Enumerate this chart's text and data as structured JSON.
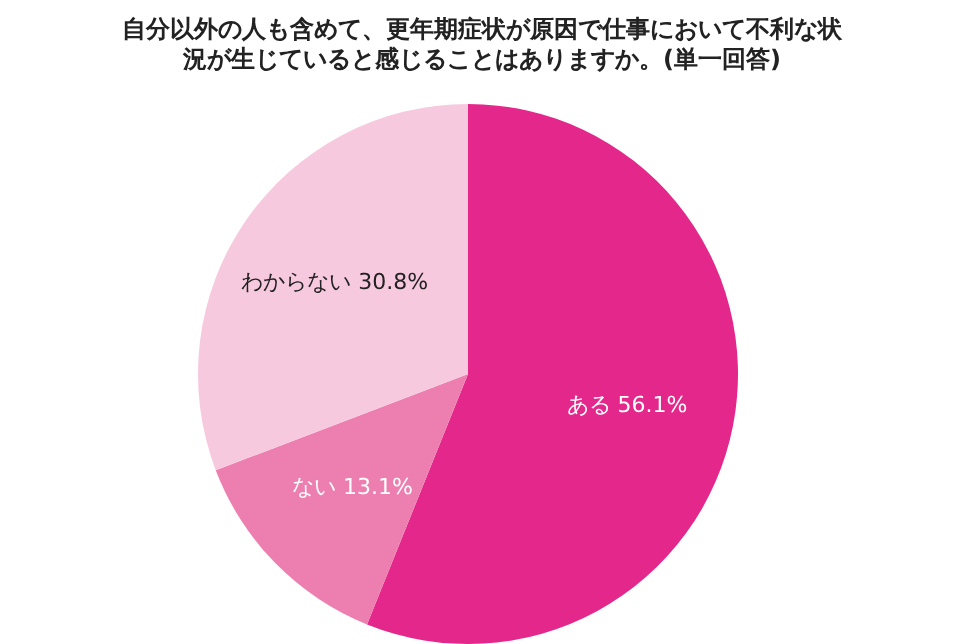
{
  "chart_data": {
    "type": "pie",
    "title": "自分以外の人も含めて、更年期症状が原因で仕事において不利な状況が生じていると感じることはありますか。(単一回答)",
    "categories": [
      "ある",
      "ない",
      "わからない"
    ],
    "values": [
      56.1,
      13.1,
      30.8
    ],
    "colors": [
      "#e4278a",
      "#ec7fb0",
      "#f7c9de"
    ],
    "value_labels": [
      "56.1%",
      "13.1%",
      "30.8%"
    ]
  }
}
